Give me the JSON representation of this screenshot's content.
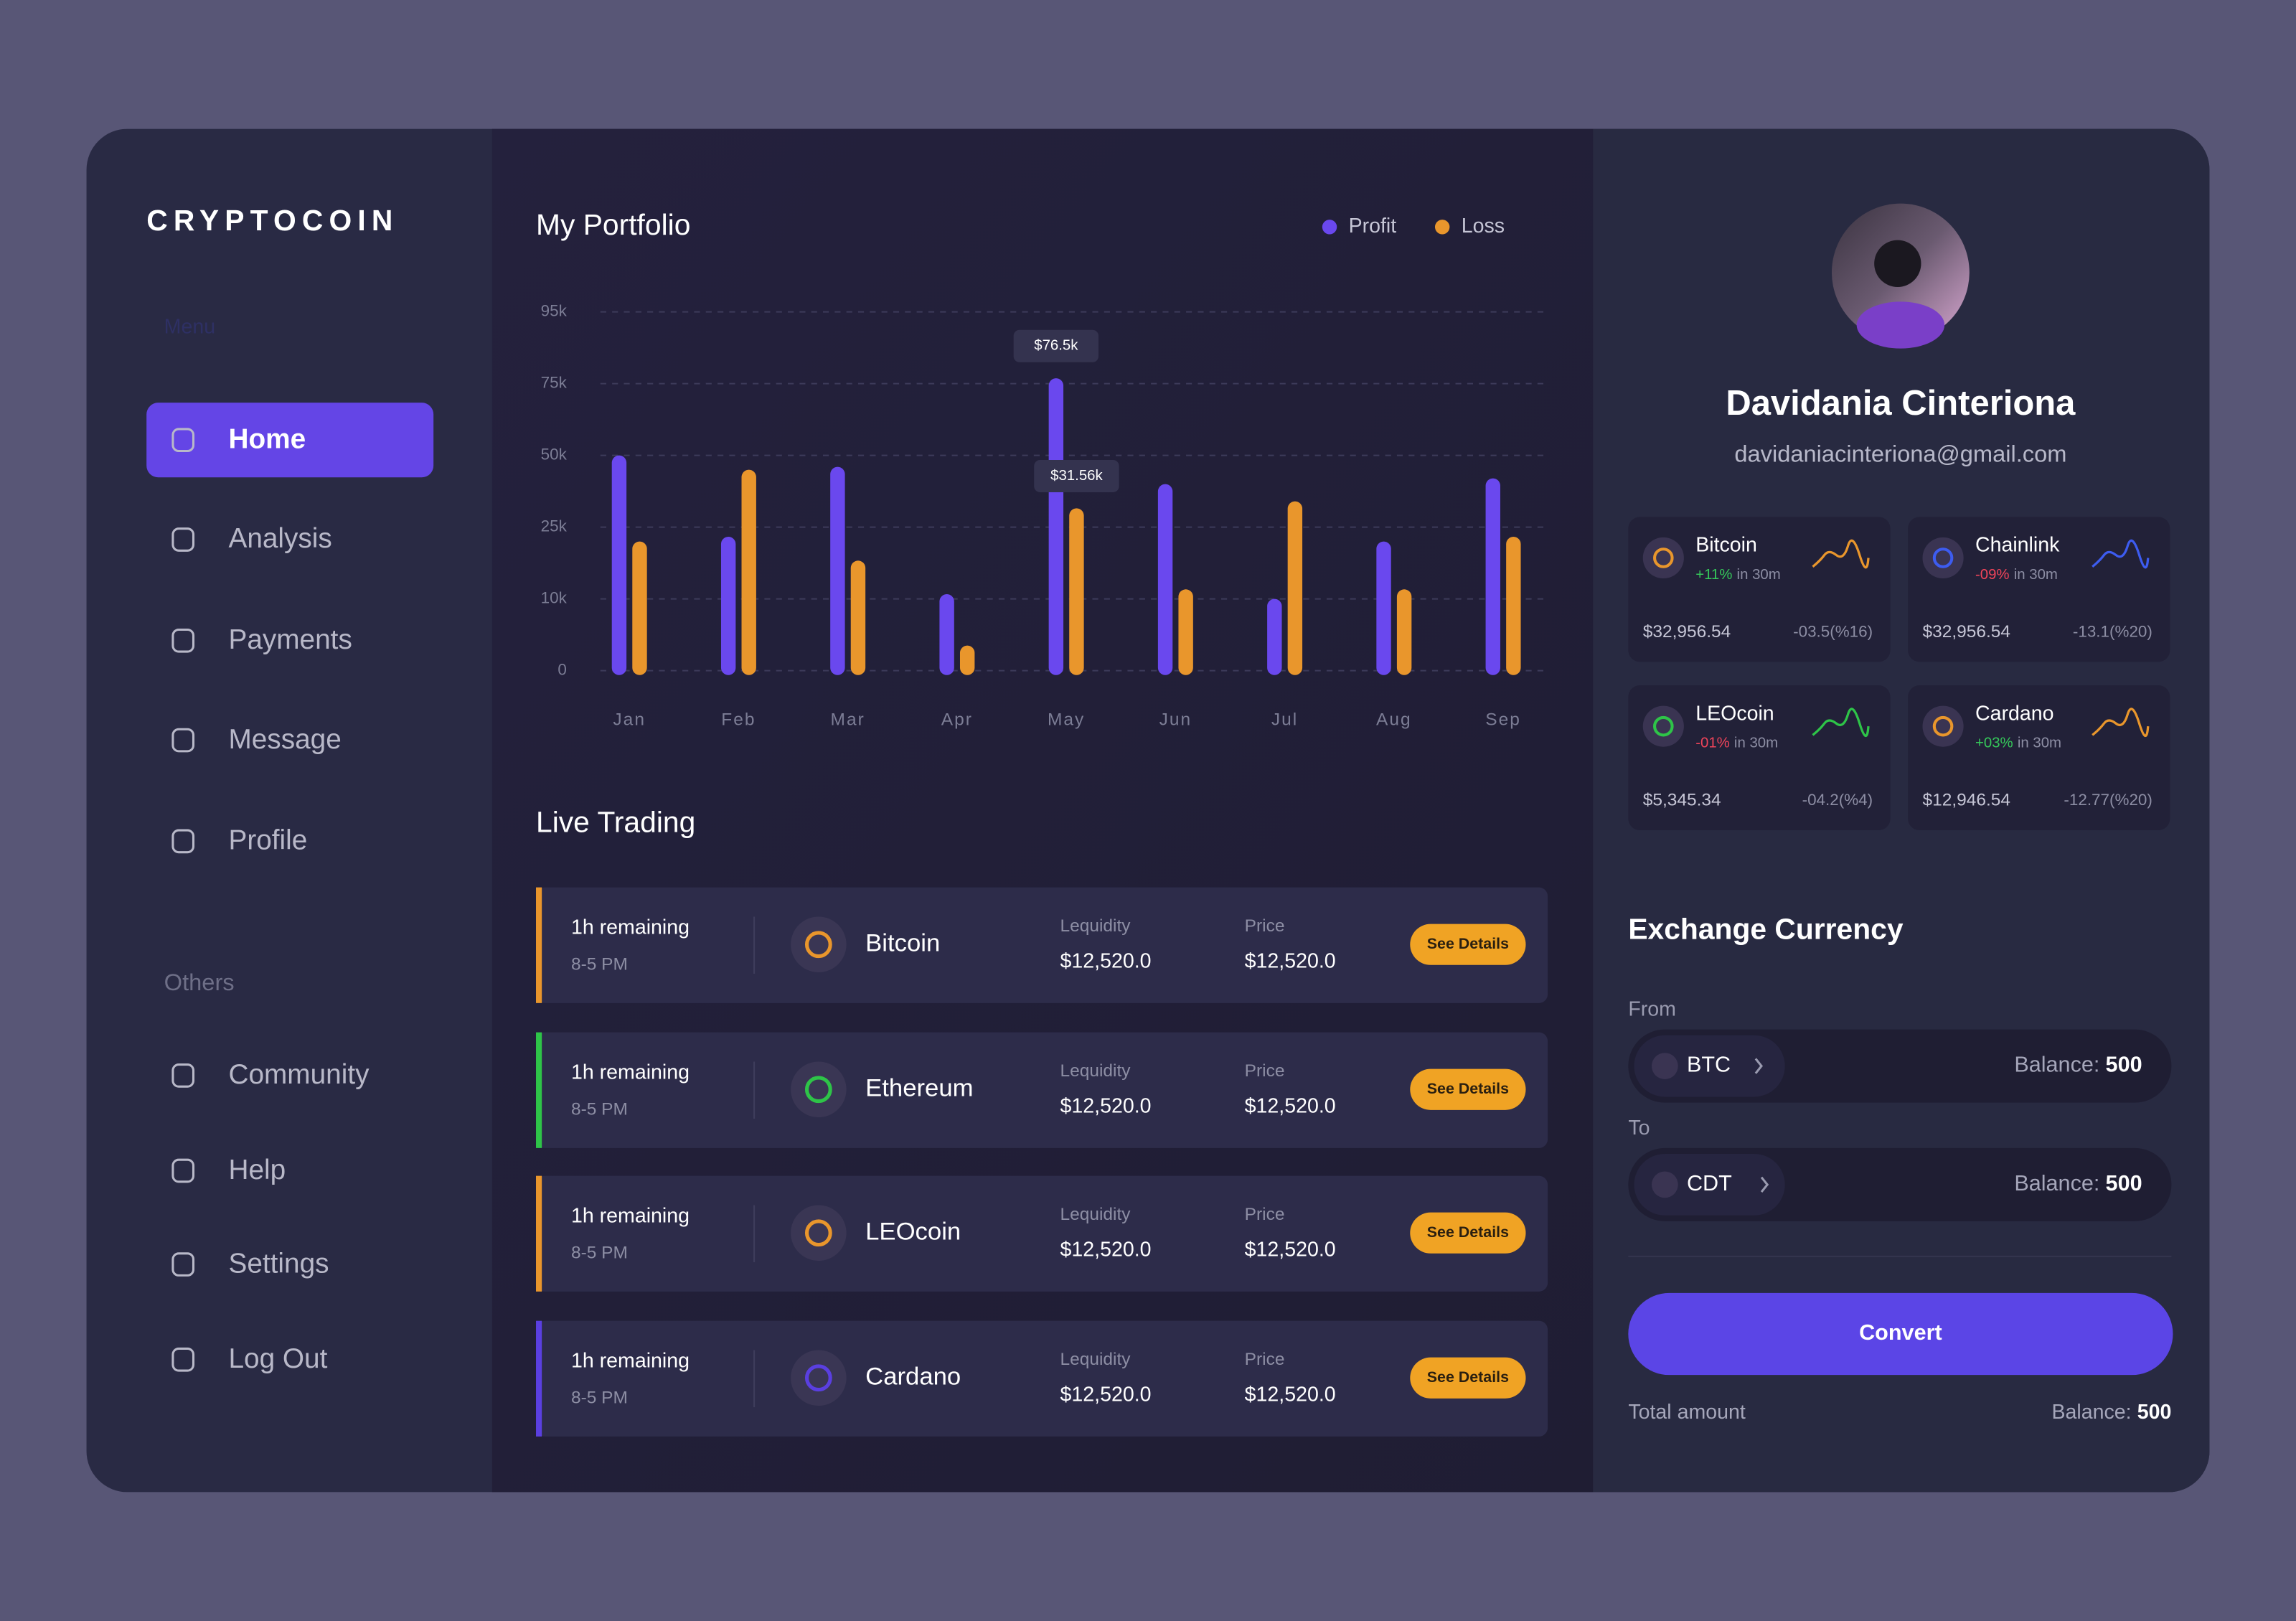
{
  "sidebar": {
    "brand": "CRYPTOCOIN",
    "menu_label": "Menu",
    "menu": [
      "Home",
      "Analysis",
      "Payments",
      "Message",
      "Profile"
    ],
    "others_label": "Others",
    "others": [
      "Community",
      "Help",
      "Settings",
      "Log Out"
    ]
  },
  "chart_data": {
    "type": "bar",
    "title": "My Portfolio",
    "categories": [
      "Jan",
      "Feb",
      "Mar",
      "Apr",
      "May",
      "Jun",
      "Jul",
      "Aug",
      "Sep"
    ],
    "series": [
      {
        "name": "Profit",
        "color": "#6a48ee",
        "values": [
          50000,
          23000,
          46000,
          11000,
          76500,
          40000,
          10000,
          22000,
          42000
        ],
        "value_labels": [
          null,
          null,
          null,
          null,
          "$76.5k",
          null,
          null,
          null,
          null
        ]
      },
      {
        "name": "Loss",
        "color": "#e9962c",
        "values": [
          22000,
          45000,
          18000,
          3500,
          31560,
          12000,
          34000,
          12000,
          23000
        ],
        "value_labels": [
          null,
          null,
          null,
          null,
          "$31.56k",
          null,
          null,
          null,
          null
        ]
      }
    ],
    "ylim": [
      0,
      95000
    ],
    "yticks": [
      0,
      {
        "value": 10000,
        "label": "10k"
      },
      {
        "value": 25000,
        "label": "25k"
      },
      {
        "value": 50000,
        "label": "50k"
      },
      {
        "value": 75000,
        "label": "75k"
      },
      {
        "value": 95000,
        "label": "95k"
      }
    ],
    "grid": true,
    "legend": "top-right"
  },
  "live_trading": {
    "title": "Live Trading",
    "rows": [
      {
        "remaining": "1h remaining",
        "hours": "8-5 PM",
        "coin": "Bitcoin",
        "liquidity_label": "Lequidity",
        "liquidity": "$12,520.0",
        "price_label": "Price",
        "price": "$12,520.0",
        "button": "See Details",
        "accent": "#e9962c"
      },
      {
        "remaining": "1h remaining",
        "hours": "8-5 PM",
        "coin": "Ethereum",
        "liquidity_label": "Lequidity",
        "liquidity": "$12,520.0",
        "price_label": "Price",
        "price": "$12,520.0",
        "button": "See Details",
        "accent": "#2ec448"
      },
      {
        "remaining": "1h remaining",
        "hours": "8-5 PM",
        "coin": "LEOcoin",
        "liquidity_label": "Lequidity",
        "liquidity": "$12,520.0",
        "price_label": "Price",
        "price": "$12,520.0",
        "button": "See Details",
        "accent": "#e9962c"
      },
      {
        "remaining": "1h remaining",
        "hours": "8-5 PM",
        "coin": "Cardano",
        "liquidity_label": "Lequidity",
        "liquidity": "$12,520.0",
        "price_label": "Price",
        "price": "$12,520.0",
        "button": "See Details",
        "accent": "#5a3fe0"
      }
    ]
  },
  "profile": {
    "name": "Davidania Cinteriona",
    "email": "davidaniacinteriona@gmail.com"
  },
  "coins": [
    {
      "name": "Bitcoin",
      "change": "+11%",
      "change_suffix": "in 30m",
      "price": "$32,956.54",
      "delta": "-03.5(%16)",
      "color": "#e9962c"
    },
    {
      "name": "Chainlink",
      "change": "-09%",
      "change_suffix": "in 30m",
      "price": "$32,956.54",
      "delta": "-13.1(%20)",
      "color": "#3d5cf0"
    },
    {
      "name": "LEOcoin",
      "change": "-01%",
      "change_suffix": "in 30m",
      "price": "$5,345.34",
      "delta": "-04.2(%4)",
      "color": "#2ec448"
    },
    {
      "name": "Cardano",
      "change": "+03%",
      "change_suffix": "in 30m",
      "price": "$12,946.54",
      "delta": "-12.77(%20)",
      "color": "#e9962c"
    }
  ],
  "exchange": {
    "title": "Exchange Currency",
    "from_label": "From",
    "from": {
      "currency": "BTC",
      "balance_label": "Balance:",
      "balance": "500"
    },
    "to_label": "To",
    "to": {
      "currency": "CDT",
      "balance_label": "Balance:",
      "balance": "500"
    },
    "button": "Convert",
    "total_label": "Total amount",
    "total": {
      "balance_label": "Balance:",
      "balance": "500"
    }
  }
}
